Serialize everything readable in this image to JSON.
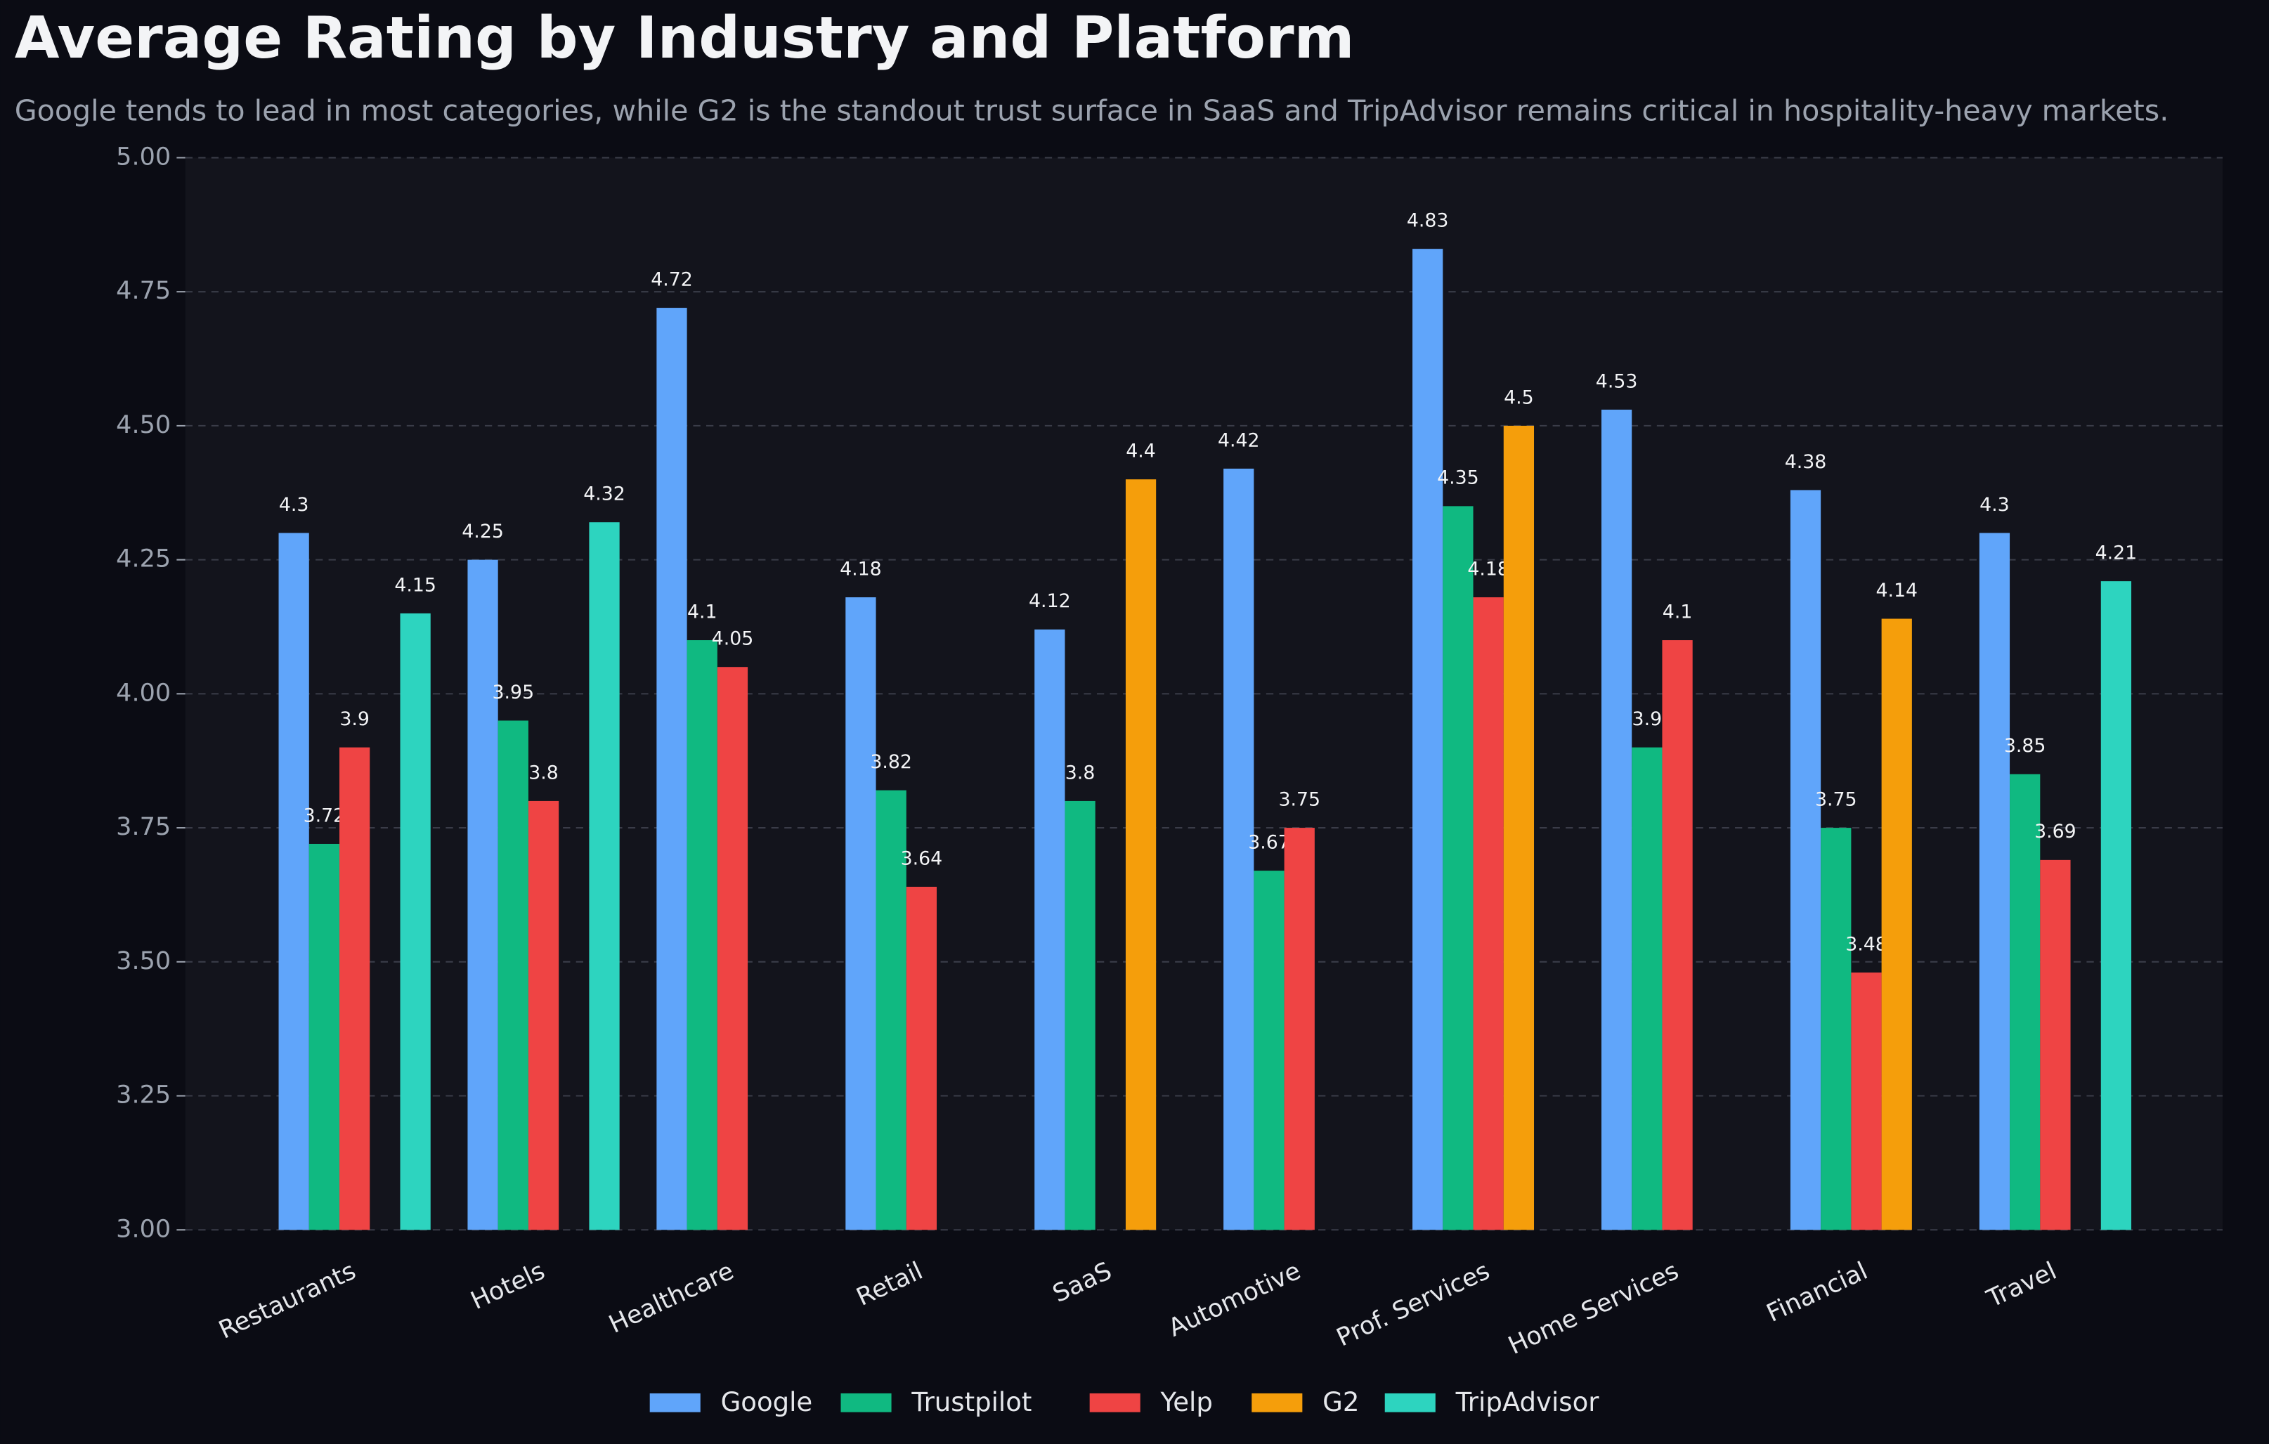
{
  "chart_data": {
    "type": "bar",
    "title": "Average Rating by Industry and Platform",
    "subtitle": "Google tends to lead in most categories, while G2 is the standout trust surface in SaaS and TripAdvisor remains critical in hospitality-heavy markets.",
    "categories": [
      "Restaurants",
      "Hotels",
      "Healthcare",
      "Retail",
      "SaaS",
      "Automotive",
      "Prof. Services",
      "Home Services",
      "Financial",
      "Travel"
    ],
    "series": [
      {
        "name": "Google",
        "color": "#60a5fa",
        "values": [
          4.3,
          4.25,
          4.72,
          4.18,
          4.12,
          4.42,
          4.83,
          4.53,
          4.38,
          4.3
        ]
      },
      {
        "name": "Trustpilot",
        "color": "#10b981",
        "values": [
          3.72,
          3.95,
          4.1,
          3.82,
          3.8,
          3.67,
          4.35,
          3.9,
          3.75,
          3.85
        ]
      },
      {
        "name": "Yelp",
        "color": "#ef4444",
        "values": [
          3.9,
          3.8,
          4.05,
          3.64,
          null,
          3.75,
          4.18,
          4.1,
          3.48,
          3.69
        ]
      },
      {
        "name": "G2",
        "color": "#f59e0b",
        "values": [
          null,
          null,
          null,
          null,
          4.4,
          null,
          4.5,
          null,
          4.14,
          null
        ]
      },
      {
        "name": "TripAdvisor",
        "color": "#2dd4bf",
        "values": [
          4.15,
          4.32,
          null,
          null,
          null,
          null,
          null,
          null,
          null,
          4.21
        ]
      }
    ],
    "ylim": [
      3,
      5
    ],
    "yticks": [
      {
        "value": 3,
        "label": "3.00"
      },
      {
        "value": 3.25,
        "label": "3.25"
      },
      {
        "value": 3.5,
        "label": "3.50"
      },
      {
        "value": 3.75,
        "label": "3.75"
      },
      {
        "value": 4,
        "label": "4.00"
      },
      {
        "value": 4.25,
        "label": "4.25"
      },
      {
        "value": 4.5,
        "label": "4.50"
      },
      {
        "value": 4.75,
        "label": "4.75"
      },
      {
        "value": 5,
        "label": "5.00"
      }
    ],
    "grid": true,
    "legend": "bottom"
  }
}
